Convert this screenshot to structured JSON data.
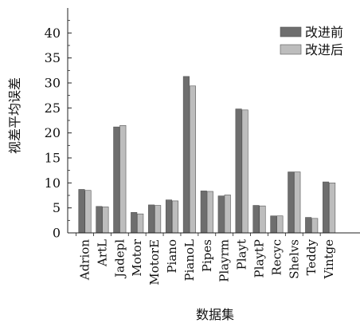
{
  "chart_data": {
    "type": "bar",
    "title": "",
    "xlabel": "数据集",
    "ylabel": "视差平均误差",
    "ylim": [
      0,
      45
    ],
    "yticks": [
      0,
      5,
      10,
      15,
      20,
      25,
      30,
      35,
      40
    ],
    "grid": false,
    "legend_position": "top-right",
    "categories": [
      "Adrion",
      "ArtL",
      "Jadepl",
      "Motor",
      "MotorE",
      "Piano",
      "PianoL",
      "Pipes",
      "Playrm",
      "Playt",
      "PlaytP",
      "Recyc",
      "Shelvs",
      "Teddy",
      "Vintge"
    ],
    "series": [
      {
        "name": "改进前",
        "color": "#6e6e6e",
        "values": [
          8.7,
          5.3,
          21.2,
          4.1,
          5.6,
          6.6,
          31.3,
          8.4,
          7.4,
          24.8,
          5.5,
          3.4,
          12.2,
          3.1,
          10.2
        ]
      },
      {
        "name": "改进后",
        "color": "#bdbdbd",
        "values": [
          8.5,
          5.2,
          21.5,
          3.8,
          5.5,
          6.4,
          29.4,
          8.3,
          7.6,
          24.6,
          5.4,
          3.4,
          12.2,
          2.9,
          10.0
        ]
      }
    ]
  }
}
